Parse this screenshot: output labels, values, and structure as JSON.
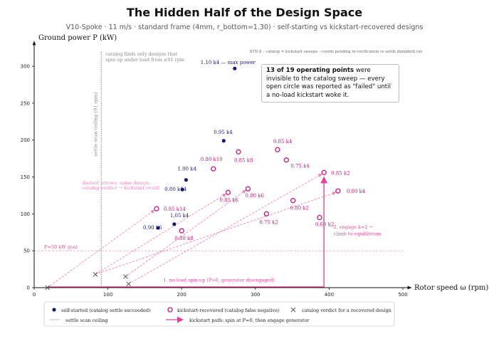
{
  "title": "The Hidden Half of the Design Space",
  "subtitle": "V10-Spoke · 11 m/s · standard frame (4mm, r_bottom=1.30) · self-starting vs kickstart-recovered designs",
  "note": "KTD β – catalog = kickstart sweeps · coords pending re-verification vs settle.dumbbell.cav",
  "callout": {
    "bold": "13 of 19 operating points",
    "rest": " were invisible to the catalog sweep — every open circle was reported as \"failed\" until a no-load kickstart woke it."
  },
  "annotations": {
    "scan_text_1": "catalog finds only designs that",
    "scan_text_2": "spin up under load from ≤91 rpm",
    "scan_vertical": "settle scan ceiling (91 rpm)",
    "dashed_1": "dashed arrows: same design,",
    "dashed_2": "catalog verdict → kickstart result",
    "step1": "1. no-load spin-up (P≈0, generator disengaged)",
    "step2a": "2. engage k=2 →",
    "step2b": "climb to equilibrium",
    "p_ref": "P=50 kW goal"
  },
  "legend": {
    "self": "self-started (catalog settle succeeded)",
    "kick": "kickstart-recovered (catalog false negative)",
    "verdict": "catalog verdict for a recovered design",
    "ceiling": "settle scan ceiling",
    "path": "kickstart path: spin at P≈0, then engage generator"
  },
  "colors": {
    "self": "#1a1a6e",
    "kick": "#c0187a",
    "dash": "#f07fc0",
    "path": "#e8409a",
    "ref": "#f4a0c8",
    "ceiling": "#888888"
  },
  "chart_data": {
    "type": "scatter",
    "xlabel": "Rotor speed ω (rpm)",
    "ylabel": "Ground power P (kW)",
    "xlim": [
      0,
      500
    ],
    "ylim": [
      0,
      330
    ],
    "xticks": [
      0,
      100,
      200,
      300,
      400,
      500
    ],
    "yticks": [
      0,
      50,
      100,
      150,
      200,
      250,
      300
    ],
    "ceiling_rpm": 91,
    "reference_power": 50,
    "self_started": [
      {
        "label": "1.10 k4 — max power",
        "x": 272,
        "y": 297
      },
      {
        "label": "0.95 k4",
        "x": 257,
        "y": 199
      },
      {
        "label": "1.00 k4",
        "x": 206,
        "y": 146
      },
      {
        "label": "0.80 k14",
        "x": 201,
        "y": 133
      },
      {
        "label": "1.05 k4",
        "x": 190,
        "y": 86
      },
      {
        "label": "0.90 k6",
        "x": 168,
        "y": 81
      }
    ],
    "kickstart_recovered": [
      {
        "label": "0.85 k8",
        "x": 277,
        "y": 184
      },
      {
        "label": "0.85 k4",
        "x": 330,
        "y": 187
      },
      {
        "label": "0.75 k4",
        "x": 342,
        "y": 173
      },
      {
        "label": "0.80 k10",
        "x": 243,
        "y": 161
      },
      {
        "label": "0.85 k2",
        "x": 393,
        "y": 156
      },
      {
        "label": "0.80 k6",
        "x": 290,
        "y": 134
      },
      {
        "label": "0.80 k4",
        "x": 412,
        "y": 131
      },
      {
        "label": "0.85 k6",
        "x": 263,
        "y": 129
      },
      {
        "label": "0.80 k2",
        "x": 351,
        "y": 118
      },
      {
        "label": "0.85 k14",
        "x": 166,
        "y": 107
      },
      {
        "label": "0.75 k2",
        "x": 315,
        "y": 100
      },
      {
        "label": "0.60 k2",
        "x": 387,
        "y": 95
      },
      {
        "label": "0.80 k8",
        "x": 200,
        "y": 77
      }
    ],
    "verdicts": [
      {
        "x": 18,
        "y": 0
      },
      {
        "x": 83,
        "y": 18
      },
      {
        "x": 124,
        "y": 15
      },
      {
        "x": 128,
        "y": 5
      }
    ]
  }
}
